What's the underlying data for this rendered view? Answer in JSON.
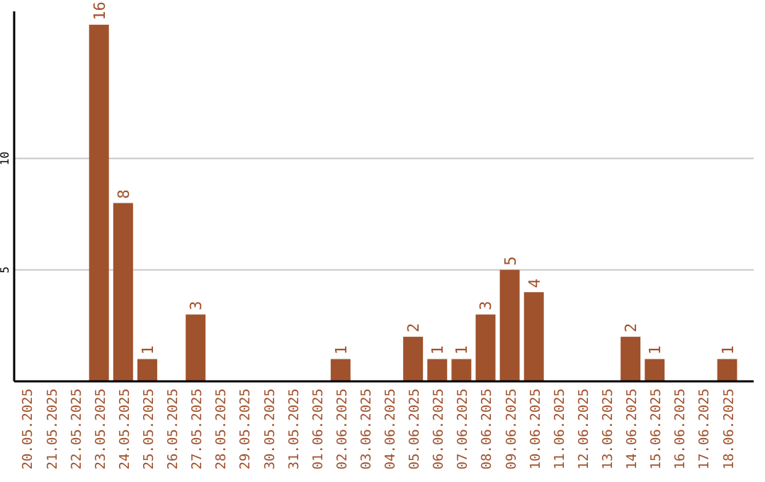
{
  "chart_data": {
    "type": "bar",
    "categories": [
      "20.05.2025",
      "21.05.2025",
      "22.05.2025",
      "23.05.2025",
      "24.05.2025",
      "25.05.2025",
      "26.05.2025",
      "27.05.2025",
      "28.05.2025",
      "29.05.2025",
      "30.05.2025",
      "31.05.2025",
      "01.06.2025",
      "02.06.2025",
      "03.06.2025",
      "04.06.2025",
      "05.06.2025",
      "06.06.2025",
      "07.06.2025",
      "08.06.2025",
      "09.06.2025",
      "10.06.2025",
      "11.06.2025",
      "12.06.2025",
      "13.06.2025",
      "14.06.2025",
      "15.06.2025",
      "16.06.2025",
      "17.06.2025",
      "18.06.2025"
    ],
    "values": [
      0,
      0,
      0,
      16,
      8,
      1,
      0,
      3,
      0,
      0,
      0,
      0,
      0,
      1,
      0,
      0,
      2,
      1,
      1,
      3,
      5,
      4,
      0,
      0,
      0,
      2,
      1,
      0,
      0,
      1
    ],
    "value_labels": [
      null,
      null,
      null,
      "16",
      "8",
      "1",
      null,
      "3",
      null,
      null,
      null,
      null,
      null,
      "1",
      null,
      null,
      "2",
      "1",
      "1",
      "3",
      "5",
      "4",
      null,
      null,
      null,
      "2",
      "1",
      null,
      null,
      "1"
    ],
    "color": "#a0522d",
    "ylim": [
      0,
      16.6
    ],
    "yticks": [
      5,
      10
    ],
    "grid": "y"
  }
}
